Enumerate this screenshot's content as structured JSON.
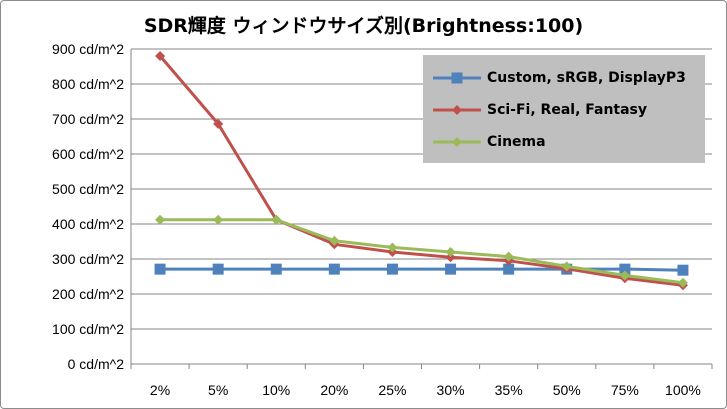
{
  "chart_data": {
    "type": "line",
    "title": "SDR輝度 ウィンドウサイズ別(Brightness:100)",
    "xlabel": "",
    "ylabel": "",
    "categories": [
      "2%",
      "5%",
      "10%",
      "20%",
      "25%",
      "30%",
      "35%",
      "50%",
      "75%",
      "100%"
    ],
    "ylim": [
      0,
      900
    ],
    "yticks": [
      {
        "value": 0,
        "label": "0 cd/m^2"
      },
      {
        "value": 100,
        "label": "100 cd/m^2"
      },
      {
        "value": 200,
        "label": "200 cd/m^2"
      },
      {
        "value": 300,
        "label": "300 cd/m^2"
      },
      {
        "value": 400,
        "label": "400 cd/m^2"
      },
      {
        "value": 500,
        "label": "500 cd/m^2"
      },
      {
        "value": 600,
        "label": "600 cd/m^2"
      },
      {
        "value": 700,
        "label": "700 cd/m^2"
      },
      {
        "value": 800,
        "label": "800 cd/m^2"
      },
      {
        "value": 900,
        "label": "900 cd/m^2"
      }
    ],
    "grid": true,
    "legend_position": "top-right",
    "series": [
      {
        "name": "Custom, sRGB, DisplayP3",
        "color": "#4f81bd",
        "marker": "square",
        "values": [
          271,
          271,
          271,
          271,
          271,
          271,
          271,
          271,
          271,
          268
        ]
      },
      {
        "name": "Sci-Fi, Real, Fantasy",
        "color": "#c0504d",
        "marker": "diamond",
        "values": [
          880,
          686,
          412,
          342,
          320,
          305,
          295,
          272,
          245,
          225
        ]
      },
      {
        "name": "Cinema",
        "color": "#9bbb59",
        "marker": "diamond",
        "values": [
          412,
          412,
          412,
          352,
          333,
          320,
          307,
          279,
          253,
          232
        ]
      }
    ]
  }
}
